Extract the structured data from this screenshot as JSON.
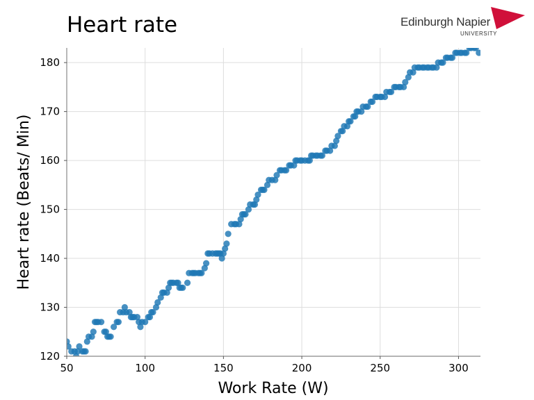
{
  "page": {
    "title": "Heart rate"
  },
  "logo": {
    "name": "Edinburgh Napier",
    "subtitle": "UNIVERSITY",
    "accent_color": "#d0103a"
  },
  "chart_data": {
    "type": "scatter",
    "xlabel": "Work Rate (W)",
    "ylabel": "Heart rate (Beats/ Min)",
    "xlim": [
      50,
      314
    ],
    "ylim": [
      120,
      183
    ],
    "xticks": [
      50,
      100,
      150,
      200,
      250,
      300
    ],
    "yticks": [
      120,
      130,
      140,
      150,
      160,
      170,
      180
    ],
    "grid": true,
    "marker_color": "#1f77b4",
    "x": [
      50,
      51,
      53,
      55,
      56,
      57,
      58,
      60,
      61,
      62,
      63,
      64,
      66,
      67,
      68,
      69,
      70,
      72,
      74,
      75,
      76,
      77,
      78,
      80,
      82,
      83,
      84,
      86,
      87,
      88,
      90,
      91,
      92,
      93,
      95,
      96,
      97,
      98,
      100,
      102,
      103,
      104,
      105,
      107,
      108,
      110,
      111,
      112,
      114,
      115,
      116,
      117,
      118,
      120,
      121,
      122,
      123,
      124,
      127,
      128,
      130,
      131,
      132,
      134,
      135,
      136,
      138,
      139,
      140,
      141,
      143,
      145,
      146,
      147,
      148,
      149,
      150,
      151,
      152,
      153,
      155,
      157,
      158,
      160,
      161,
      162,
      163,
      164,
      166,
      167,
      169,
      170,
      171,
      172,
      174,
      175,
      176,
      178,
      179,
      181,
      183,
      184,
      186,
      187,
      189,
      190,
      192,
      193,
      195,
      196,
      197,
      199,
      200,
      202,
      204,
      205,
      206,
      207,
      209,
      210,
      212,
      213,
      215,
      216,
      218,
      219,
      221,
      222,
      223,
      225,
      226,
      227,
      229,
      230,
      231,
      233,
      234,
      235,
      236,
      238,
      239,
      241,
      242,
      244,
      245,
      247,
      248,
      250,
      251,
      253,
      254,
      256,
      257,
      259,
      260,
      262,
      263,
      265,
      266,
      268,
      269,
      271,
      272,
      274,
      275,
      277,
      278,
      280,
      281,
      283,
      284,
      286,
      287,
      289,
      290,
      292,
      293,
      295,
      296,
      298,
      299,
      301,
      302,
      304,
      305,
      307,
      308,
      310,
      311,
      313
    ],
    "y": [
      123,
      122,
      121,
      121,
      120,
      121,
      122,
      121,
      121,
      121,
      123,
      124,
      124,
      125,
      127,
      127,
      127,
      127,
      125,
      125,
      124,
      124,
      124,
      126,
      127,
      127,
      129,
      129,
      130,
      129,
      129,
      128,
      128,
      128,
      128,
      127,
      126,
      127,
      127,
      128,
      128,
      129,
      129,
      130,
      131,
      132,
      133,
      133,
      133,
      134,
      135,
      135,
      135,
      135,
      135,
      134,
      134,
      134,
      135,
      137,
      137,
      137,
      137,
      137,
      137,
      137,
      138,
      139,
      141,
      141,
      141,
      141,
      141,
      141,
      141,
      140,
      141,
      142,
      143,
      145,
      147,
      147,
      147,
      147,
      148,
      149,
      149,
      149,
      150,
      151,
      151,
      151,
      152,
      153,
      154,
      154,
      154,
      155,
      156,
      156,
      156,
      157,
      158,
      158,
      158,
      158,
      159,
      159,
      159,
      160,
      160,
      160,
      160,
      160,
      160,
      160,
      161,
      161,
      161,
      161,
      161,
      161,
      162,
      162,
      162,
      163,
      163,
      164,
      165,
      166,
      166,
      167,
      167,
      168,
      168,
      169,
      169,
      170,
      170,
      170,
      171,
      171,
      171,
      172,
      172,
      173,
      173,
      173,
      173,
      173,
      174,
      174,
      174,
      175,
      175,
      175,
      175,
      175,
      176,
      177,
      178,
      178,
      179,
      179,
      179,
      179,
      179,
      179,
      179,
      179,
      179,
      179,
      180,
      180,
      180,
      181,
      181,
      181,
      181,
      182,
      182,
      182,
      182,
      182,
      182,
      183,
      183,
      183,
      183,
      182
    ]
  }
}
